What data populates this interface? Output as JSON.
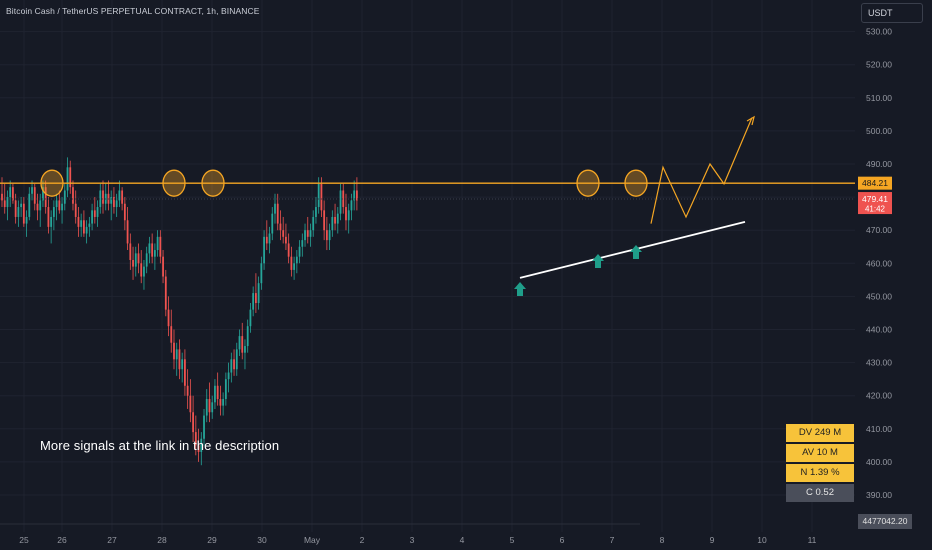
{
  "header": {
    "title": "Bitcoin Cash / TetherUS PERPETUAL CONTRACT, 1h, BINANCE",
    "currency": "USDT"
  },
  "promo_text": "More signals at the link in the description",
  "info_panel": {
    "dv": "DV 249 M",
    "av": "AV 10 M",
    "n": "N 1.39 %",
    "c": "C  0.52"
  },
  "crosshair_price": "4477042.20",
  "colors": {
    "background": "#161a25",
    "bull": "#26a69a",
    "bear": "#ef5350",
    "resistance": "#f5a623",
    "support": "#ffffff",
    "arrow": "#1f9e8a",
    "grid": "#1f2330"
  },
  "chart_data": {
    "type": "candlestick",
    "title": "Bitcoin Cash / TetherUS PERPETUAL CONTRACT, 1h, BINANCE",
    "y_axis": {
      "position": "right",
      "range": [
        385,
        534
      ],
      "ticks": [
        390,
        400,
        410,
        420,
        430,
        440,
        450,
        460,
        470,
        480,
        490,
        500,
        510,
        520,
        530
      ],
      "tick_labels": [
        "390.00",
        "400.00",
        "410.00",
        "420.00",
        "430.00",
        "440.00",
        "450.00",
        "460.00",
        "470.00",
        "480.00",
        "490.00",
        "500.00",
        "510.00",
        "520.00",
        "530.00"
      ]
    },
    "x_axis": {
      "tick_labels": [
        "25",
        "26",
        "27",
        "28",
        "29",
        "30",
        "May",
        "2",
        "3",
        "4",
        "5",
        "6",
        "7",
        "8",
        "9",
        "10",
        "11"
      ]
    },
    "price_labels": [
      {
        "value": 484.21,
        "text": "484.21",
        "color": "#f5a623"
      },
      {
        "value": 479.41,
        "text": "479.41",
        "color": "#ef5350"
      },
      {
        "value": 476.6,
        "text": "41:42",
        "color": "#ef5350"
      }
    ],
    "resistance_level": 484.21,
    "last_price": 479.41,
    "support_line": {
      "from": {
        "x": "May 5",
        "y": 455.6
      },
      "to": {
        "x": "May 9.7",
        "y": 472.5
      }
    },
    "resistance_touches": [
      "Apr 25.6",
      "Apr 28.2",
      "Apr 29.0",
      "May 6.5",
      "May 7.4"
    ],
    "signal_arrows": [
      "May 5.2",
      "May 6.7",
      "May 7.5"
    ],
    "projection_path": [
      {
        "x": "May 7.5",
        "y": 472
      },
      {
        "x": "May 8.0",
        "y": 489
      },
      {
        "x": "May 8.5",
        "y": 474
      },
      {
        "x": "May 9.0",
        "y": 490
      },
      {
        "x": "May 9.3",
        "y": 484
      },
      {
        "x": "May 9.8",
        "y": 504
      }
    ],
    "candles": [
      [
        481,
        486,
        477,
        479
      ],
      [
        479,
        484,
        475,
        477
      ],
      [
        477,
        482,
        473,
        480
      ],
      [
        480,
        485,
        477,
        483
      ],
      [
        483,
        484,
        478,
        479
      ],
      [
        479,
        481,
        472,
        474
      ],
      [
        474,
        479,
        471,
        477
      ],
      [
        477,
        480,
        474,
        478
      ],
      [
        478,
        480,
        471,
        472
      ],
      [
        472,
        476,
        468,
        474
      ],
      [
        474,
        483,
        473,
        481
      ],
      [
        481,
        485,
        479,
        483
      ],
      [
        483,
        484,
        476,
        478
      ],
      [
        478,
        481,
        473,
        476
      ],
      [
        476,
        481,
        471,
        479
      ],
      [
        479,
        485,
        477,
        483
      ],
      [
        483,
        485,
        475,
        477
      ],
      [
        477,
        480,
        469,
        471
      ],
      [
        471,
        476,
        466,
        474
      ],
      [
        474,
        479,
        470,
        477
      ],
      [
        477,
        481,
        473,
        479
      ],
      [
        479,
        482,
        475,
        476
      ],
      [
        476,
        480,
        472,
        478
      ],
      [
        478,
        484,
        476,
        482
      ],
      [
        482,
        492,
        480,
        489
      ],
      [
        489,
        491,
        481,
        483
      ],
      [
        483,
        485,
        476,
        478
      ],
      [
        478,
        482,
        472,
        474
      ],
      [
        474,
        477,
        468,
        471
      ],
      [
        471,
        475,
        468,
        473
      ],
      [
        473,
        476,
        468,
        469
      ],
      [
        469,
        473,
        466,
        471
      ],
      [
        471,
        474,
        468,
        472
      ],
      [
        472,
        478,
        470,
        476
      ],
      [
        476,
        480,
        472,
        474
      ],
      [
        474,
        479,
        471,
        477
      ],
      [
        477,
        484,
        475,
        482
      ],
      [
        482,
        485,
        475,
        478
      ],
      [
        478,
        484,
        476,
        481
      ],
      [
        481,
        485,
        476,
        478
      ],
      [
        478,
        482,
        473,
        480
      ],
      [
        480,
        483,
        475,
        477
      ],
      [
        477,
        481,
        474,
        479
      ],
      [
        479,
        485,
        477,
        482
      ],
      [
        482,
        483,
        476,
        478
      ],
      [
        478,
        480,
        470,
        473
      ],
      [
        473,
        477,
        464,
        466
      ],
      [
        466,
        469,
        458,
        461
      ],
      [
        461,
        465,
        455,
        459
      ],
      [
        459,
        465,
        456,
        463
      ],
      [
        463,
        466,
        457,
        460
      ],
      [
        460,
        464,
        454,
        456
      ],
      [
        456,
        461,
        452,
        459
      ],
      [
        459,
        465,
        457,
        463
      ],
      [
        463,
        468,
        460,
        466
      ],
      [
        466,
        469,
        460,
        462
      ],
      [
        462,
        466,
        458,
        464
      ],
      [
        464,
        470,
        462,
        468
      ],
      [
        468,
        470,
        460,
        462
      ],
      [
        462,
        464,
        454,
        456
      ],
      [
        456,
        458,
        444,
        446
      ],
      [
        446,
        450,
        438,
        441
      ],
      [
        441,
        446,
        433,
        436
      ],
      [
        436,
        440,
        428,
        431
      ],
      [
        431,
        436,
        426,
        434
      ],
      [
        434,
        437,
        425,
        428
      ],
      [
        428,
        433,
        424,
        431
      ],
      [
        431,
        434,
        420,
        423
      ],
      [
        423,
        428,
        416,
        420
      ],
      [
        420,
        425,
        412,
        415
      ],
      [
        415,
        420,
        406,
        409
      ],
      [
        409,
        414,
        402,
        405
      ],
      [
        405,
        410,
        400,
        403
      ],
      [
        403,
        409,
        399,
        407
      ],
      [
        407,
        416,
        405,
        414
      ],
      [
        414,
        422,
        412,
        419
      ],
      [
        419,
        424,
        412,
        415
      ],
      [
        415,
        420,
        413,
        418
      ],
      [
        418,
        425,
        416,
        423
      ],
      [
        423,
        427,
        417,
        419
      ],
      [
        419,
        423,
        414,
        417
      ],
      [
        417,
        421,
        414,
        419
      ],
      [
        419,
        427,
        417,
        425
      ],
      [
        425,
        430,
        421,
        427
      ],
      [
        427,
        433,
        424,
        431
      ],
      [
        431,
        434,
        426,
        428
      ],
      [
        428,
        436,
        426,
        434
      ],
      [
        434,
        440,
        432,
        438
      ],
      [
        438,
        442,
        431,
        433
      ],
      [
        433,
        437,
        428,
        435
      ],
      [
        435,
        443,
        433,
        441
      ],
      [
        441,
        448,
        439,
        446
      ],
      [
        446,
        453,
        444,
        451
      ],
      [
        451,
        457,
        445,
        448
      ],
      [
        448,
        456,
        446,
        454
      ],
      [
        454,
        462,
        452,
        460
      ],
      [
        460,
        470,
        458,
        468
      ],
      [
        468,
        473,
        464,
        466
      ],
      [
        466,
        471,
        463,
        469
      ],
      [
        469,
        477,
        467,
        475
      ],
      [
        475,
        481,
        472,
        478
      ],
      [
        478,
        481,
        470,
        472
      ],
      [
        472,
        476,
        467,
        470
      ],
      [
        470,
        474,
        466,
        468
      ],
      [
        468,
        472,
        464,
        466
      ],
      [
        466,
        469,
        460,
        462
      ],
      [
        462,
        465,
        456,
        458
      ],
      [
        458,
        462,
        455,
        460
      ],
      [
        460,
        464,
        457,
        462
      ],
      [
        462,
        467,
        460,
        465
      ],
      [
        465,
        469,
        462,
        467
      ],
      [
        467,
        472,
        465,
        470
      ],
      [
        470,
        474,
        466,
        468
      ],
      [
        468,
        472,
        465,
        470
      ],
      [
        470,
        476,
        468,
        474
      ],
      [
        474,
        480,
        472,
        477
      ],
      [
        477,
        486,
        475,
        484
      ],
      [
        484,
        486,
        474,
        476
      ],
      [
        476,
        479,
        467,
        470
      ],
      [
        470,
        474,
        464,
        467
      ],
      [
        467,
        472,
        464,
        470
      ],
      [
        470,
        476,
        468,
        474
      ],
      [
        474,
        478,
        470,
        472
      ],
      [
        472,
        477,
        469,
        475
      ],
      [
        475,
        484,
        473,
        482
      ],
      [
        482,
        484,
        475,
        477
      ],
      [
        477,
        481,
        470,
        473
      ],
      [
        473,
        478,
        469,
        476
      ],
      [
        476,
        481,
        473,
        479
      ],
      [
        479,
        485,
        476,
        482
      ],
      [
        482,
        486,
        476,
        479
      ]
    ]
  }
}
